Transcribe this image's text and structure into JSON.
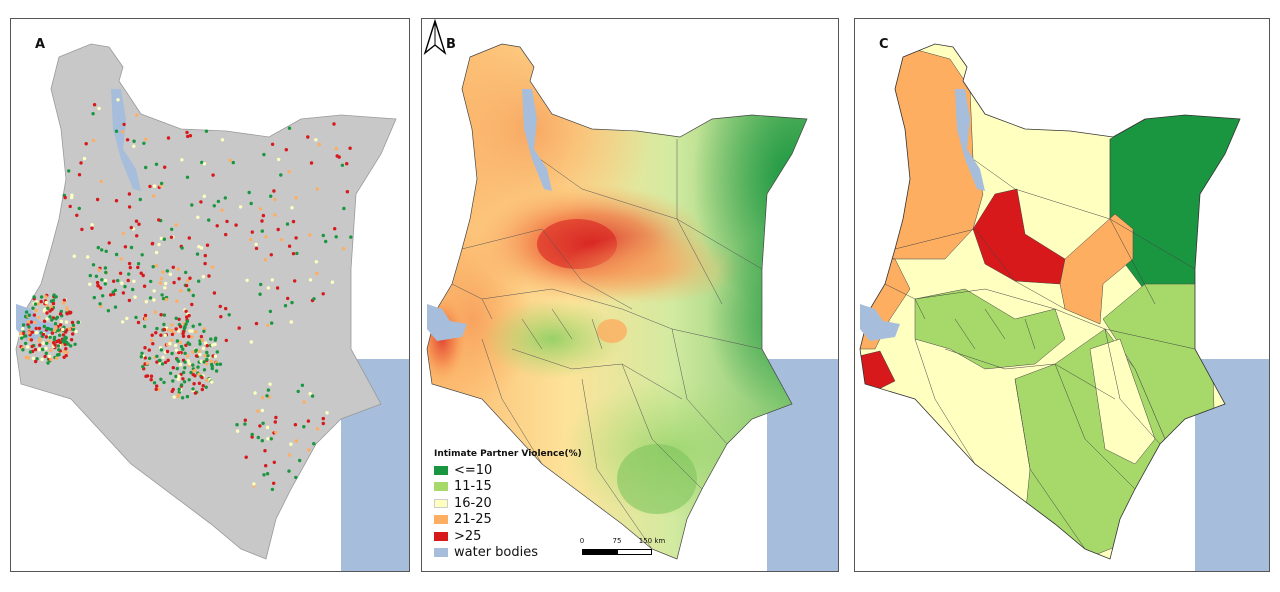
{
  "panels": [
    {
      "letter": "A"
    },
    {
      "letter": "B"
    },
    {
      "letter": "C"
    }
  ],
  "legend": {
    "title": "Intimate Partner Violence(%)",
    "items": [
      {
        "label": "<=10",
        "color": "#1a9641"
      },
      {
        "label": "11-15",
        "color": "#a6d96a"
      },
      {
        "label": "16-20",
        "color": "#ffffc0"
      },
      {
        "label": "21-25",
        "color": "#fdae61"
      },
      {
        "label": ">25",
        "color": "#d7191c"
      },
      {
        "label": "water bodies",
        "color": "#a6bddb"
      }
    ]
  },
  "scale": {
    "ticks": [
      "0",
      "75",
      "150 km"
    ]
  },
  "colors": {
    "land_gray": "#c8c8c8",
    "water": "#a6bddb",
    "very_low": "#1a9641",
    "low": "#a6d96a",
    "mid": "#ffffc0",
    "high": "#fdae61",
    "very_high": "#d7191c"
  },
  "icons": {
    "north_arrow": "north-arrow-icon"
  }
}
